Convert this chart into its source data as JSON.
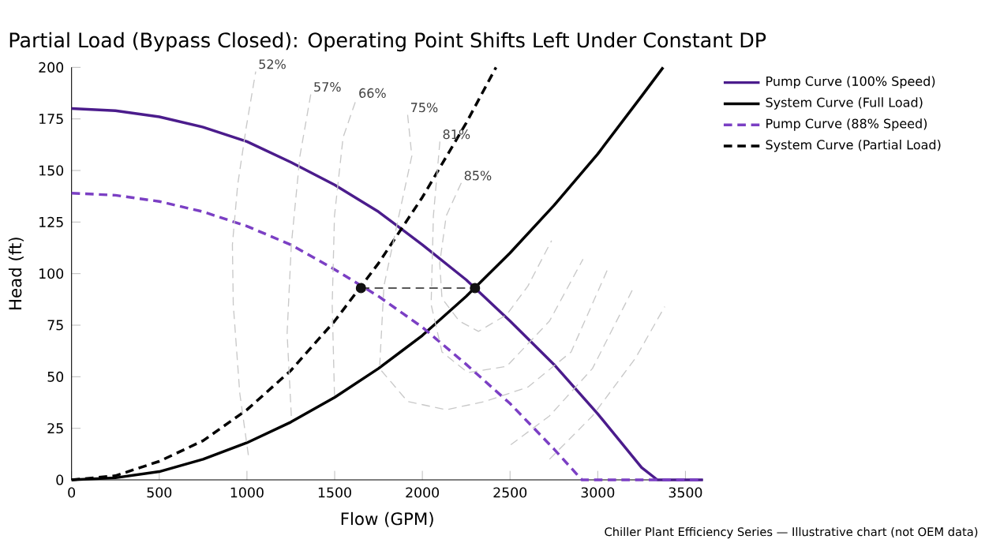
{
  "chart_data": {
    "type": "line",
    "title": "Partial Load (Bypass Closed): Operating Point Shifts Left Under Constant DP",
    "xlabel": "Flow (GPM)",
    "ylabel": "Head (ft)",
    "xlim": [
      0,
      3600
    ],
    "ylim": [
      0,
      200
    ],
    "xticks": [
      0,
      500,
      1000,
      1500,
      2000,
      2500,
      3000,
      3500
    ],
    "yticks": [
      0,
      25,
      50,
      75,
      100,
      125,
      150,
      175,
      200
    ],
    "grid": false,
    "legend": "right",
    "series": [
      {
        "name": "Pump Curve (100% Speed)",
        "color": "#4b1c8c",
        "line_style": "solid",
        "x": [
          0,
          250,
          500,
          750,
          1000,
          1250,
          1500,
          1750,
          2000,
          2250,
          2500,
          2750,
          3000,
          3250,
          3340,
          3600
        ],
        "values": [
          180,
          179,
          176,
          171,
          164,
          154,
          143,
          130,
          114,
          97,
          77,
          56,
          32,
          6,
          0,
          0
        ]
      },
      {
        "name": "System Curve (Full Load)",
        "color": "#000000",
        "line_style": "solid",
        "x": [
          0,
          250,
          500,
          750,
          1000,
          1250,
          1500,
          1750,
          2000,
          2250,
          2500,
          2750,
          3000,
          3250,
          3373
        ],
        "values": [
          0,
          1,
          4,
          10,
          18,
          28,
          40,
          54,
          70,
          89,
          110,
          133,
          158,
          186,
          200
        ]
      },
      {
        "name": "Pump Curve (88% Speed)",
        "color": "#7b3fc4",
        "line_style": "dashed",
        "x": [
          0,
          250,
          500,
          750,
          1000,
          1250,
          1500,
          1750,
          2000,
          2250,
          2500,
          2750,
          2910,
          3600
        ],
        "values": [
          139,
          138,
          135,
          130,
          123,
          114,
          102,
          89,
          74,
          56,
          37,
          15,
          0,
          0
        ]
      },
      {
        "name": "System Curve (Partial Load)",
        "color": "#000000",
        "line_style": "dashed",
        "x": [
          0,
          250,
          500,
          750,
          1000,
          1250,
          1500,
          1750,
          2000,
          2250,
          2420
        ],
        "values": [
          0,
          2,
          9,
          19,
          34,
          53,
          77,
          105,
          137,
          173,
          200
        ]
      },
      {
        "color": "#222222",
        "line_style": "dashed",
        "x": [
          1650,
          2300
        ],
        "values": [
          93,
          93
        ]
      },
      {
        "type": "scatter",
        "marker": "circle",
        "color": "#111111",
        "x": [
          1650,
          2300
        ],
        "values": [
          93,
          93
        ]
      },
      {
        "color": "#c8c8c8",
        "line_style": "dashed",
        "x": [
          1008,
          959,
          922,
          917,
          947,
          996,
          1050
        ],
        "values": [
          12,
          42,
          85,
          114,
          143,
          171,
          198
        ]
      },
      {
        "color": "#c8c8c8",
        "line_style": "dashed",
        "x": [
          1253,
          1229,
          1253,
          1302,
          1364
        ],
        "values": [
          31,
          71,
          114,
          157,
          187
        ]
      },
      {
        "color": "#c8c8c8",
        "line_style": "dashed",
        "x": [
          1499,
          1486,
          1499,
          1548,
          1621
        ],
        "values": [
          41,
          85,
          128,
          166,
          184
        ]
      },
      {
        "color": "#c8c8c8",
        "line_style": "dashed",
        "x": [
          1916,
          1940,
          1866,
          1781,
          1756,
          1916,
          2136,
          2357,
          2602,
          2848,
          3056
        ],
        "values": [
          177,
          157,
          128,
          94,
          54,
          38,
          34,
          38,
          45,
          62,
          102
        ]
      },
      {
        "color": "#c8c8c8",
        "line_style": "dashed",
        "x": [
          2100,
          2063,
          2050,
          2112,
          2259,
          2480,
          2725,
          2916
        ],
        "values": [
          164,
          128,
          85,
          62,
          52,
          55,
          77,
          107
        ]
      },
      {
        "color": "#c8c8c8",
        "line_style": "dashed",
        "x": [
          2222,
          2136,
          2099,
          2112,
          2210,
          2320,
          2480,
          2602,
          2737
        ],
        "values": [
          144,
          128,
          105,
          88,
          77,
          72,
          80,
          94,
          116
        ]
      },
      {
        "color": "#c8c8c8",
        "line_style": "dashed",
        "x": [
          2504,
          2725,
          2970,
          3203
        ],
        "values": [
          17,
          31,
          54,
          93
        ]
      },
      {
        "color": "#c8c8c8",
        "line_style": "dashed",
        "x": [
          2725,
          2970,
          3215,
          3382
        ],
        "values": [
          10,
          31,
          59,
          84
        ]
      }
    ],
    "annotations": [
      {
        "text": "52%",
        "x": 1050,
        "y": 198
      },
      {
        "text": "57%",
        "x": 1364,
        "y": 187
      },
      {
        "text": "66%",
        "x": 1621,
        "y": 184
      },
      {
        "text": "75%",
        "x": 1916,
        "y": 177
      },
      {
        "text": "81%",
        "x": 2100,
        "y": 164
      },
      {
        "text": "85%",
        "x": 2222,
        "y": 144
      },
      "Chiller Plant Efficiency Series — Illustrative chart (not OEM data)"
    ]
  }
}
